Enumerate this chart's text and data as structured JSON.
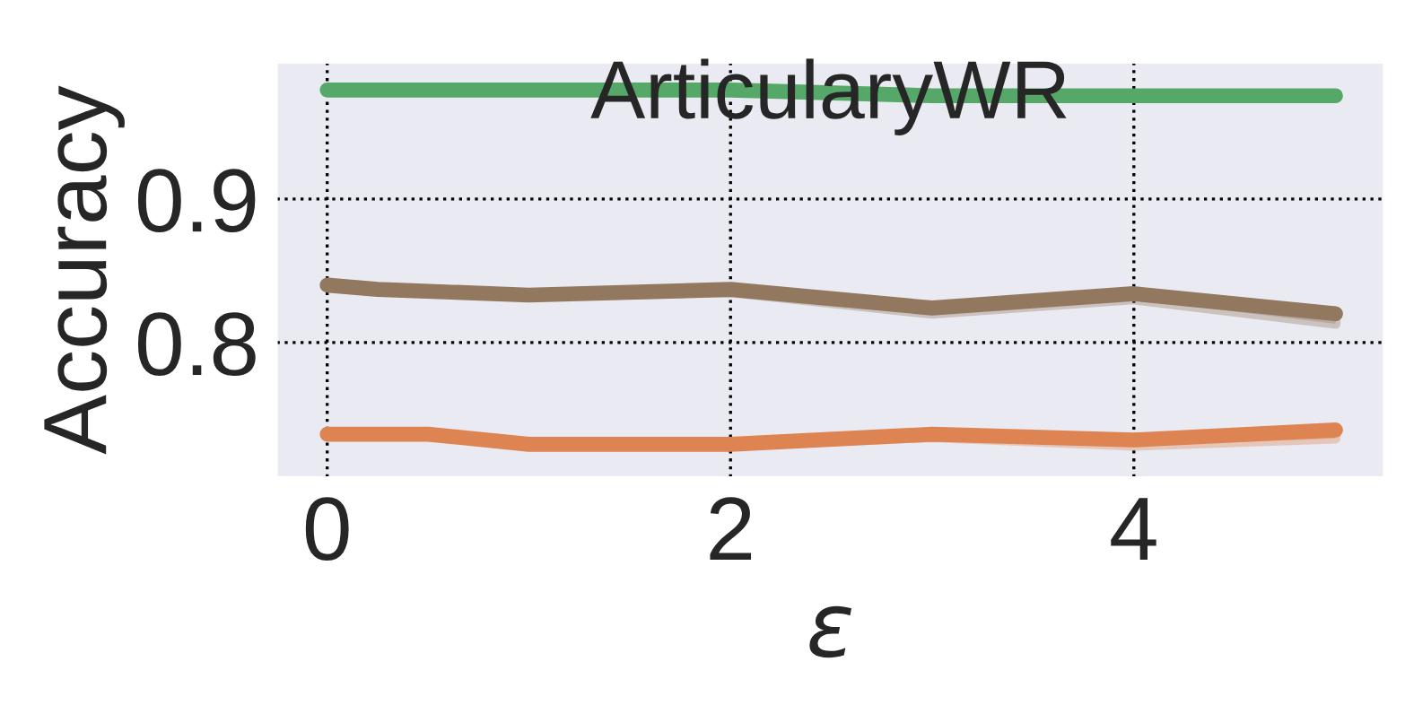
{
  "chart_data": {
    "type": "line",
    "title": "ArticularyWR",
    "xlabel": "ε",
    "ylabel": "Accuracy",
    "xlim": [
      -0.25,
      5.24
    ],
    "xticks": [
      0,
      2,
      4
    ],
    "ylim": [
      0.706,
      0.995
    ],
    "yticks": [
      0.8,
      0.9
    ],
    "grid": true,
    "line_style": "solid",
    "marker": "none",
    "legend": false,
    "series": [
      {
        "color": "#55a868",
        "x": [
          0,
          0.5,
          1,
          2,
          3,
          4,
          5
        ],
        "values": [
          0.976,
          0.976,
          0.976,
          0.976,
          0.972,
          0.972,
          0.972
        ]
      },
      {
        "color": "#937860",
        "x": [
          0,
          0.25,
          1,
          2,
          3,
          4,
          5
        ],
        "values": [
          0.84,
          0.837,
          0.833,
          0.837,
          0.824,
          0.834,
          0.82
        ],
        "lower": [
          0.84,
          0.836,
          0.832,
          0.835,
          0.82,
          0.83,
          0.813
        ],
        "upper": [
          0.84,
          0.837,
          0.833,
          0.837,
          0.824,
          0.834,
          0.82
        ]
      },
      {
        "color": "#dd8452",
        "x": [
          0,
          0.5,
          1,
          2,
          3,
          4,
          5
        ],
        "values": [
          0.736,
          0.736,
          0.729,
          0.729,
          0.736,
          0.732,
          0.739
        ],
        "lower": [
          0.736,
          0.736,
          0.729,
          0.728,
          0.734,
          0.728,
          0.733
        ],
        "upper": [
          0.736,
          0.736,
          0.729,
          0.729,
          0.736,
          0.732,
          0.739
        ]
      }
    ]
  }
}
